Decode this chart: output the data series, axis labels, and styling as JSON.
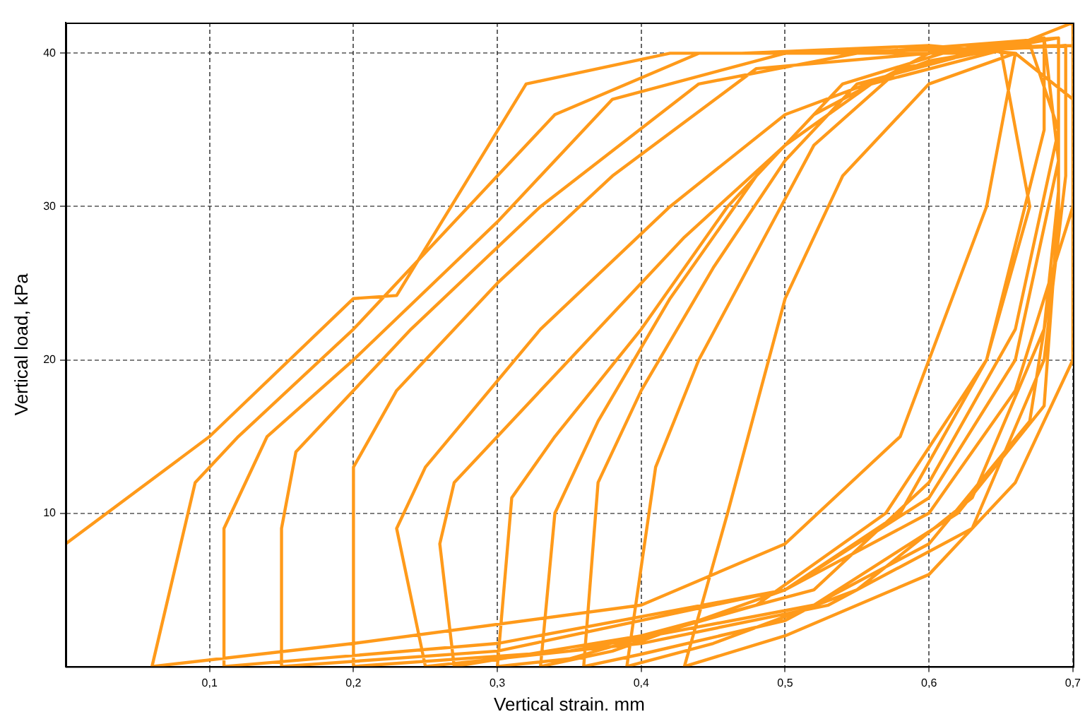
{
  "chart_data": {
    "type": "line",
    "xlabel": "Vertical strain. mm",
    "ylabel": "Vertical load, kPa",
    "color": "#ff9a1a",
    "marker": "none",
    "line_style": "solid",
    "grid": true,
    "legend": false,
    "xlim": [
      0,
      0.7
    ],
    "ylim": [
      0,
      42
    ],
    "xticks": [
      {
        "value": 0.1,
        "label": "0,1"
      },
      {
        "value": 0.2,
        "label": "0,2"
      },
      {
        "value": 0.3,
        "label": "0,3"
      },
      {
        "value": 0.4,
        "label": "0,4"
      },
      {
        "value": 0.5,
        "label": "0,5"
      },
      {
        "value": 0.6,
        "label": "0,6"
      },
      {
        "value": 0.7,
        "label": "0,7"
      }
    ],
    "yticks": [
      10,
      20,
      30,
      40
    ],
    "x": [
      0,
      0.1,
      0.2,
      0.23,
      0.32,
      0.42,
      0.47,
      0.6,
      0.66,
      0.64,
      0.58,
      0.5,
      0.4,
      0.2,
      0.06,
      0.09,
      0.12,
      0.2,
      0.28,
      0.34,
      0.44,
      0.62,
      0.68,
      0.68,
      0.64,
      0.58,
      0.5,
      0.3,
      0.11,
      0.11,
      0.14,
      0.2,
      0.3,
      0.38,
      0.5,
      0.7,
      0.7,
      0.66,
      0.6,
      0.5,
      0.3,
      0.15,
      0.15,
      0.16,
      0.24,
      0.33,
      0.44,
      0.55,
      0.69,
      0.69,
      0.68,
      0.62,
      0.52,
      0.35,
      0.2,
      0.2,
      0.23,
      0.3,
      0.38,
      0.48,
      0.6,
      0.695,
      0.695,
      0.68,
      0.63,
      0.53,
      0.4,
      0.25,
      0.23,
      0.25,
      0.33,
      0.42,
      0.5,
      0.6,
      0.67,
      0.69,
      0.66,
      0.6,
      0.52,
      0.4,
      0.27,
      0.26,
      0.27,
      0.35,
      0.43,
      0.5,
      0.56,
      0.65,
      0.67,
      0.64,
      0.57,
      0.48,
      0.35,
      0.3,
      0.31,
      0.34,
      0.4,
      0.46,
      0.52,
      0.6,
      0.68,
      0.69,
      0.66,
      0.6,
      0.5,
      0.38,
      0.33,
      0.34,
      0.37,
      0.42,
      0.48,
      0.54,
      0.62,
      0.69,
      0.69,
      0.67,
      0.6,
      0.5,
      0.4,
      0.36,
      0.37,
      0.4,
      0.45,
      0.5,
      0.55,
      0.63,
      0.69,
      0.69,
      0.68,
      0.63,
      0.55,
      0.45,
      0.39,
      0.41,
      0.44,
      0.48,
      0.52,
      0.58,
      0.66,
      0.7,
      0.7,
      0.66,
      0.6,
      0.5,
      0.43,
      0.46,
      0.5,
      0.54,
      0.6,
      0.66,
      0.7,
      0.7
    ],
    "values": [
      8,
      15,
      24,
      24.2,
      38,
      40,
      40,
      40.5,
      40,
      30,
      15,
      8,
      4,
      1.5,
      0,
      12,
      15,
      22,
      30,
      36,
      40,
      40,
      41,
      35,
      20,
      10,
      5,
      1.5,
      0,
      9,
      15,
      20,
      29,
      37,
      40,
      40.5,
      30,
      18,
      10,
      5,
      1,
      0,
      9,
      14,
      22,
      30,
      38,
      40,
      41,
      30,
      17,
      10,
      4,
      1,
      0,
      13,
      18,
      25,
      32,
      39,
      40,
      40.5,
      32,
      20,
      9,
      4,
      1.5,
      0,
      9,
      13,
      22,
      30,
      36,
      39.5,
      40.6,
      35,
      22,
      12,
      5,
      2,
      0,
      8,
      12,
      20,
      28,
      34,
      38,
      40.2,
      30,
      20,
      10,
      4,
      0.5,
      0,
      11,
      15,
      22,
      30,
      36,
      40,
      41,
      33,
      20,
      11,
      5,
      1,
      0,
      10,
      16,
      24,
      32,
      38,
      40.3,
      40.5,
      28,
      16,
      8,
      3,
      0.8,
      0,
      12,
      18,
      26,
      33,
      38,
      40,
      41,
      31,
      22,
      11,
      5,
      1.5,
      0,
      13,
      20,
      27,
      34,
      39,
      40.5,
      42,
      20,
      12,
      6,
      2,
      0,
      10,
      24,
      32,
      38,
      40,
      37,
      33
    ]
  }
}
